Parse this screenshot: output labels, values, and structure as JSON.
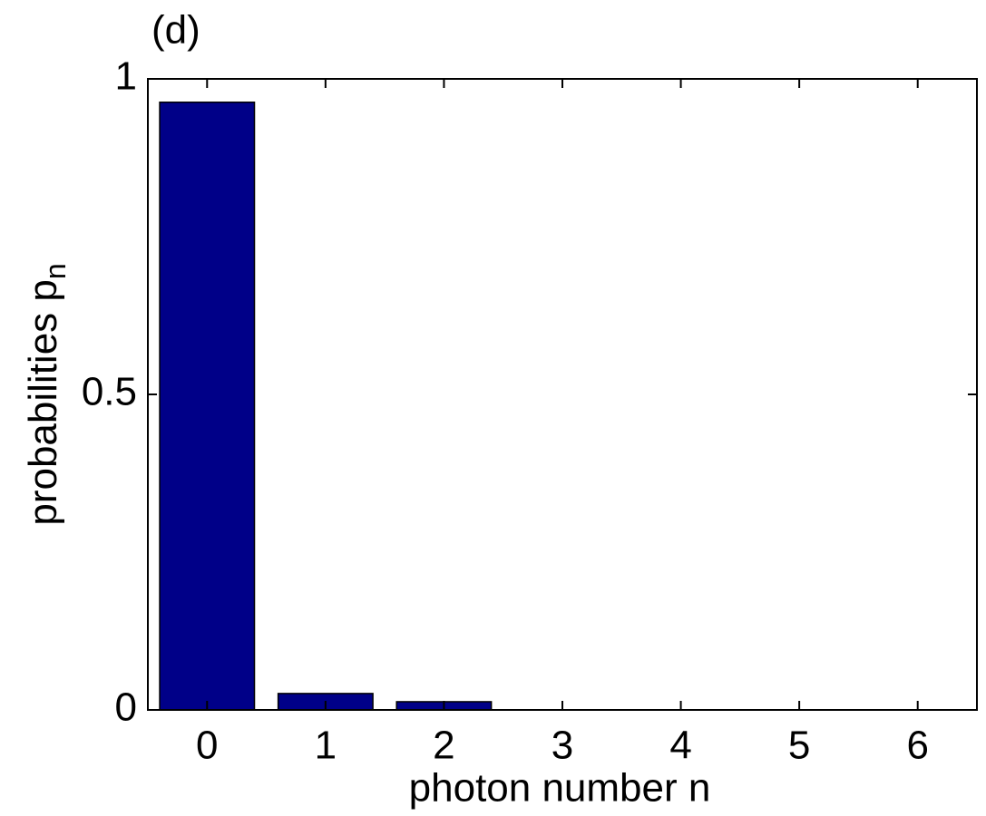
{
  "chart_data": {
    "type": "bar",
    "annotation": "(d)",
    "xlabel": "photon number n",
    "ylabel": {
      "text": "probabilities p",
      "subscript": "n"
    },
    "x": [
      0,
      1,
      2,
      3,
      4,
      5,
      6
    ],
    "values": [
      0.963,
      0.026,
      0.013,
      0,
      0,
      0,
      0
    ],
    "color": "#000088",
    "xlim": [
      -0.5,
      6.5
    ],
    "xticks": [
      0,
      1,
      2,
      3,
      4,
      5,
      6
    ],
    "ylim": [
      0,
      1
    ],
    "yticks": [
      0,
      0.5,
      1
    ],
    "grid": false
  }
}
